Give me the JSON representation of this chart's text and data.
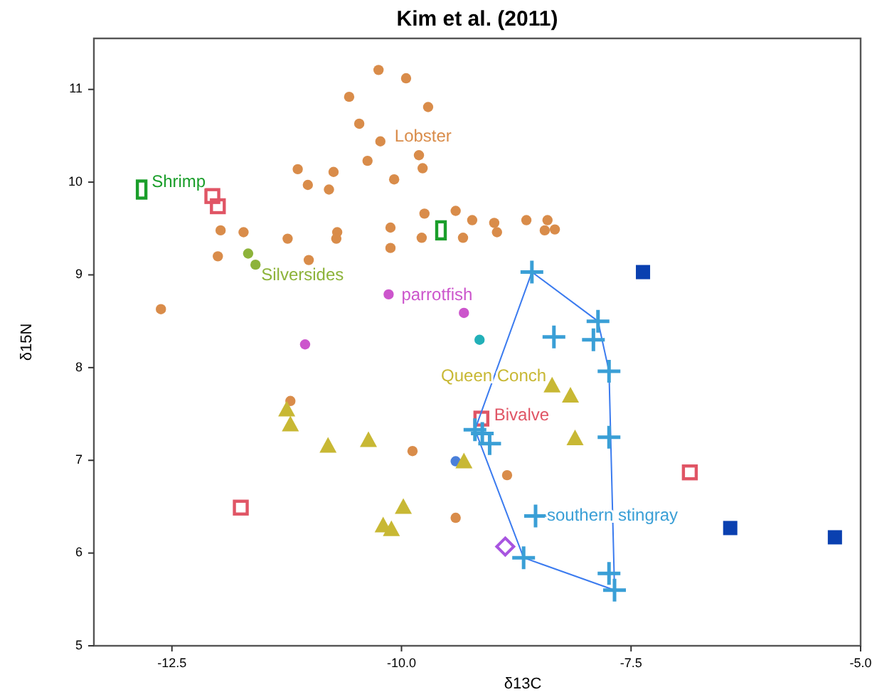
{
  "chart_data": {
    "type": "scatter",
    "title": "Kim et al. (2011)",
    "xlabel": "δ13C",
    "ylabel": "δ15N",
    "xlim": [
      -13.35,
      -5.0
    ],
    "ylim": [
      5,
      11.55
    ],
    "xticks": [
      {
        "value": -12.5,
        "label": "-12.5"
      },
      {
        "value": -10,
        "label": "-10.0"
      },
      {
        "value": -7.5,
        "label": "-7.5"
      },
      {
        "value": -5,
        "label": "-5.0"
      }
    ],
    "yticks": [
      5,
      6,
      7,
      8,
      9,
      10,
      11
    ],
    "grid": false,
    "series": [
      {
        "name": "Lobster",
        "color": "#d98c4a",
        "marker": "circle",
        "x": [
          -10.25,
          -9.95,
          -10.57,
          -9.71,
          -10.46,
          -10.23,
          -10.37,
          -9.81,
          -9.77,
          -11.13,
          -10.74,
          -11.02,
          -10.79,
          -10.08,
          -11.97,
          -11.72,
          -11.24,
          -10.7,
          -10.71,
          -12.0,
          -11.01,
          -10.12,
          -10.12,
          -9.75,
          -9.78,
          -9.41,
          -9.33,
          -9.23,
          -8.99,
          -8.96,
          -8.64,
          -8.41,
          -8.44,
          -8.33,
          -12.62,
          -11.21,
          -9.88,
          -8.85,
          -9.41
        ],
        "values": [
          11.21,
          11.12,
          10.92,
          10.81,
          10.63,
          10.44,
          10.23,
          10.29,
          10.15,
          10.14,
          10.11,
          9.97,
          9.92,
          10.03,
          9.48,
          9.46,
          9.39,
          9.46,
          9.39,
          9.2,
          9.16,
          9.51,
          9.29,
          9.66,
          9.4,
          9.69,
          9.4,
          9.59,
          9.56,
          9.46,
          9.59,
          9.59,
          9.48,
          9.49,
          8.63,
          7.64,
          7.1,
          6.84,
          6.38
        ]
      },
      {
        "name": "Shrimp",
        "color": "#1a9e2a",
        "marker": "square",
        "x": [
          -12.83,
          -9.57
        ],
        "values": [
          9.92,
          9.48
        ]
      },
      {
        "name": "Silversides",
        "color": "#8db33a",
        "marker": "circle",
        "x": [
          -11.67,
          -11.59
        ],
        "values": [
          9.23,
          9.11
        ]
      },
      {
        "name": "parrotfish",
        "color": "#cc55cc",
        "marker": "circle",
        "x": [
          -10.14,
          -9.32,
          -11.05
        ],
        "values": [
          8.79,
          8.59,
          8.25
        ]
      },
      {
        "color": "#22b0b8",
        "marker": "circle",
        "x": [
          -9.15
        ],
        "values": [
          8.3
        ]
      },
      {
        "color": "#4a7fd9",
        "marker": "circle",
        "x": [
          -9.41
        ],
        "values": [
          6.99
        ]
      },
      {
        "name": "Bivalve",
        "color": "#e05565",
        "marker": "square",
        "x": [
          -12.06,
          -12.0,
          -11.75,
          -9.13,
          -6.86
        ],
        "values": [
          9.85,
          9.74,
          6.49,
          7.45,
          6.87
        ]
      },
      {
        "name": "Queen Conch",
        "color": "#c8b834",
        "marker": "triangle",
        "x": [
          -11.25,
          -11.21,
          -10.8,
          -10.36,
          -9.98,
          -10.2,
          -10.11,
          -9.32,
          -8.36,
          -8.16,
          -8.11
        ],
        "values": [
          7.55,
          7.39,
          7.16,
          7.22,
          6.5,
          6.3,
          6.26,
          6.99,
          7.81,
          7.7,
          7.24
        ]
      },
      {
        "name": "southern stingray",
        "color": "#3a9fd6",
        "marker": "cross",
        "x": [
          -8.58,
          -7.86,
          -8.34,
          -7.91,
          -7.74,
          -9.2,
          -9.12,
          -9.04,
          -7.74,
          -8.54,
          -8.67,
          -7.74,
          -7.68
        ],
        "values": [
          9.03,
          8.5,
          8.33,
          8.3,
          7.96,
          7.33,
          7.29,
          7.18,
          7.25,
          6.4,
          5.95,
          5.78,
          5.6
        ]
      },
      {
        "color": "#a855e0",
        "marker": "diamond",
        "x": [
          -8.87
        ],
        "values": [
          6.07
        ]
      },
      {
        "color": "#0a40b0",
        "marker": "square",
        "x": [
          -7.37,
          -6.42,
          -5.28
        ],
        "values": [
          9.03,
          6.27,
          6.17
        ]
      }
    ]
  }
}
